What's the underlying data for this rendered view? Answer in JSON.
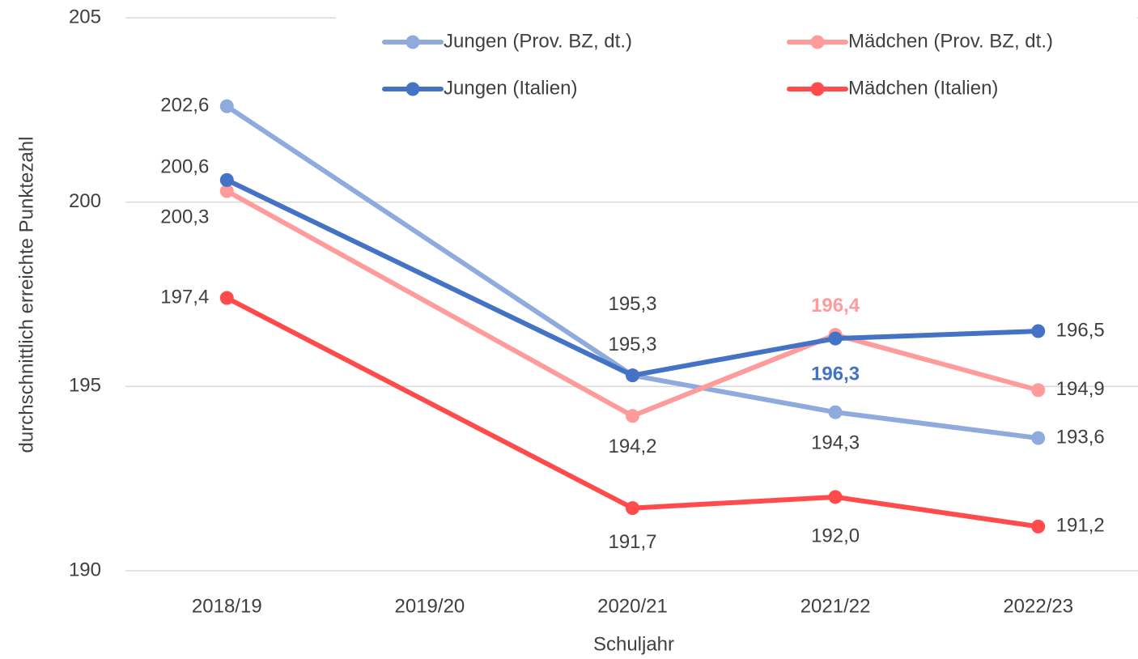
{
  "chart_data": {
    "type": "line",
    "x_label": "Schuljahr",
    "y_label": "durchschnittlich erreichte Punktezahl",
    "categories": [
      "2018/19",
      "2019/20",
      "2020/21",
      "2021/22",
      "2022/23"
    ],
    "series": [
      {
        "name": "Jungen (Prov. BZ, dt.)",
        "color": "#8faadc",
        "values": [
          202.6,
          null,
          195.3,
          194.3,
          193.6
        ],
        "value_labels": [
          "202,6",
          null,
          "195,3",
          "194,3",
          "193,6"
        ]
      },
      {
        "name": "Mädchen (Prov. BZ, dt.)",
        "color": "#ff9b9b",
        "values": [
          200.3,
          null,
          194.2,
          196.4,
          194.9
        ],
        "value_labels": [
          "200,3",
          null,
          "194,2",
          "196,4",
          "194,9"
        ]
      },
      {
        "name": "Jungen (Italien)",
        "color": "#4472c4",
        "values": [
          200.6,
          null,
          195.3,
          196.3,
          196.5
        ],
        "value_labels": [
          "200,6",
          null,
          "195,3",
          "196,3",
          "196,5"
        ]
      },
      {
        "name": "Mädchen (Italien)",
        "color": "#ff4b4b",
        "values": [
          197.4,
          null,
          191.7,
          192.0,
          191.2
        ],
        "value_labels": [
          "197,4",
          null,
          "191,7",
          "192,0",
          "191,2"
        ]
      }
    ],
    "ylim": [
      190,
      205
    ],
    "yticks": [
      190,
      195,
      200,
      205
    ],
    "grid": true,
    "span_gaps": true,
    "legend": "top"
  }
}
